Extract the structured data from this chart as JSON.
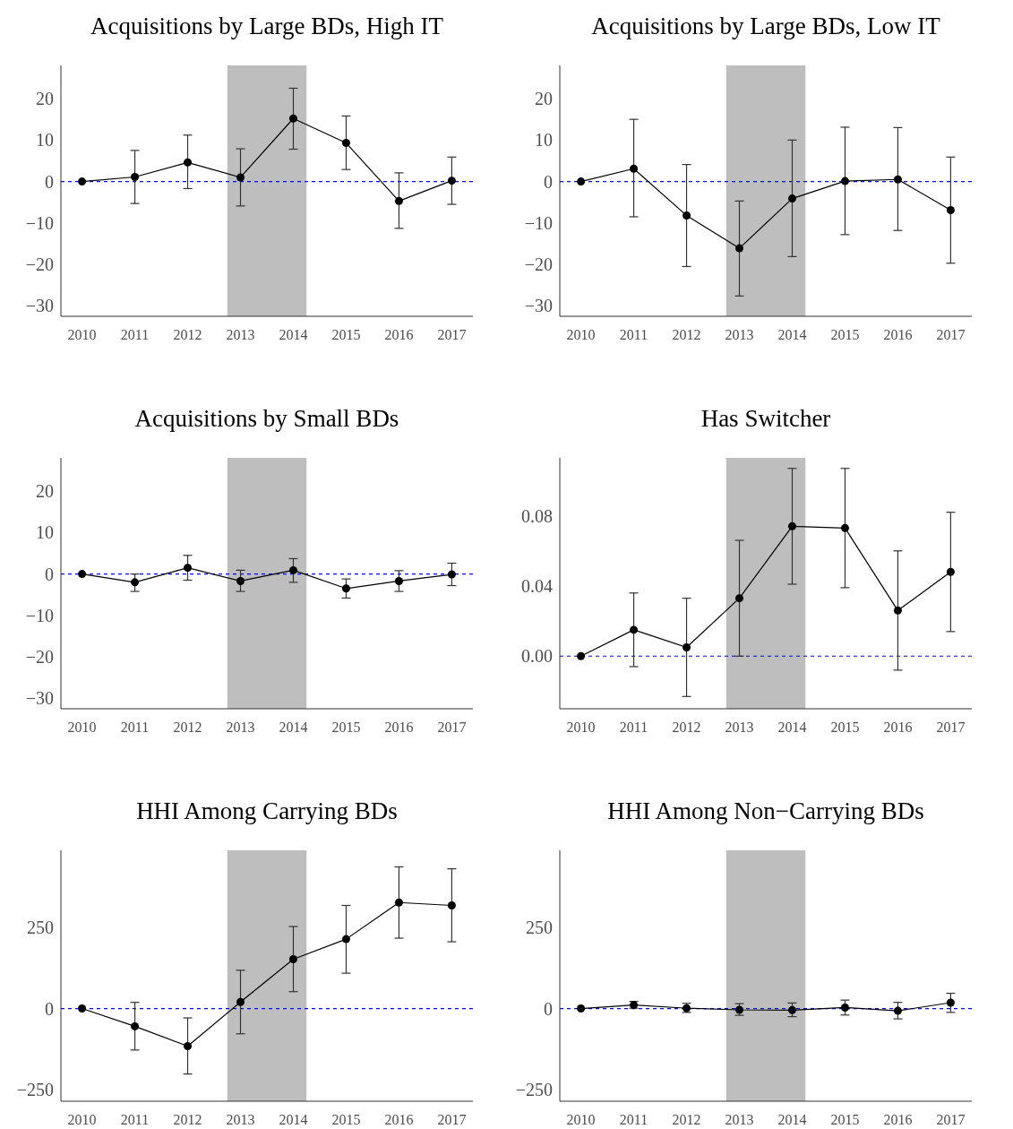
{
  "chart_data": [
    {
      "type": "line",
      "title": "Acquisitions by Large BDs, High IT",
      "x": [
        2010,
        2011,
        2012,
        2013,
        2014,
        2015,
        2016,
        2017
      ],
      "color": "#000000",
      "marker": "circle",
      "line_style": "solid",
      "values": [
        0,
        1.1,
        4.6,
        1,
        15.2,
        9.3,
        -4.7,
        0.2
      ],
      "errors": [
        null,
        [
          -5.3,
          7.5
        ],
        [
          -1.7,
          11.2
        ],
        [
          -5.9,
          7.9
        ],
        [
          7.8,
          22.5
        ],
        [
          2.9,
          15.8
        ],
        [
          -11.3,
          2.1
        ],
        [
          -5.5,
          5.9
        ]
      ],
      "xlim": [
        2009.6,
        2017.4
      ],
      "xticks": [
        2010,
        2011,
        2012,
        2013,
        2014,
        2015,
        2016,
        2017
      ],
      "ylim": [
        -32.5,
        28
      ],
      "yticks": [
        {
          "value": -30,
          "label": "−30"
        },
        {
          "value": -20,
          "label": "−20"
        },
        {
          "value": -10,
          "label": "−10"
        },
        0,
        10,
        20
      ],
      "bands": [
        {
          "axis": "x",
          "from": 2012.75,
          "to": 2014.25,
          "color": "#bebebe"
        }
      ],
      "ref_lines": [
        {
          "axis": "y",
          "value": 0,
          "color": "#0000ff",
          "line_style": "dashed"
        }
      ]
    },
    {
      "type": "line",
      "title": "Acquisitions by Large BDs, Low IT",
      "x": [
        2010,
        2011,
        2012,
        2013,
        2014,
        2015,
        2016,
        2017
      ],
      "color": "#000000",
      "marker": "circle",
      "line_style": "solid",
      "values": [
        0,
        3.1,
        -8.2,
        -16.1,
        -4.1,
        0.1,
        0.5,
        -6.9
      ],
      "errors": [
        null,
        [
          -8.5,
          15.0
        ],
        [
          -20.5,
          4.1
        ],
        [
          -27.6,
          -4.7
        ],
        [
          -18.1,
          10
        ],
        [
          -12.8,
          13.1
        ],
        [
          -11.8,
          13
        ],
        [
          -19.7,
          5.9
        ]
      ],
      "xlim": [
        2009.6,
        2017.4
      ],
      "xticks": [
        2010,
        2011,
        2012,
        2013,
        2014,
        2015,
        2016,
        2017
      ],
      "ylim": [
        -32.5,
        28
      ],
      "yticks": [
        {
          "value": -30,
          "label": "−30"
        },
        {
          "value": -20,
          "label": "−20"
        },
        {
          "value": -10,
          "label": "−10"
        },
        0,
        10,
        20
      ],
      "bands": [
        {
          "axis": "x",
          "from": 2012.75,
          "to": 2014.25,
          "color": "#bebebe"
        }
      ],
      "ref_lines": [
        {
          "axis": "y",
          "value": 0,
          "color": "#0000ff",
          "line_style": "dashed"
        }
      ]
    },
    {
      "type": "line",
      "title": "Acquisitions by Small BDs",
      "x": [
        2010,
        2011,
        2012,
        2013,
        2014,
        2015,
        2016,
        2017
      ],
      "color": "#000000",
      "marker": "circle",
      "line_style": "solid",
      "values": [
        0,
        -2.0,
        1.5,
        -1.7,
        0.9,
        -3.5,
        -1.7,
        -0.1
      ],
      "errors": [
        null,
        [
          -4.2,
          0
        ],
        [
          -1.5,
          4.5
        ],
        [
          -4.2,
          0.9
        ],
        [
          -2.0,
          3.7
        ],
        [
          -5.8,
          -1.2
        ],
        [
          -4.2,
          0.8
        ],
        [
          -2.8,
          2.6
        ]
      ],
      "xlim": [
        2009.6,
        2017.4
      ],
      "xticks": [
        2010,
        2011,
        2012,
        2013,
        2014,
        2015,
        2016,
        2017
      ],
      "ylim": [
        -32.5,
        28
      ],
      "yticks": [
        {
          "value": -30,
          "label": "−30"
        },
        {
          "value": -20,
          "label": "−20"
        },
        {
          "value": -10,
          "label": "−10"
        },
        0,
        10,
        20
      ],
      "bands": [
        {
          "axis": "x",
          "from": 2012.75,
          "to": 2014.25,
          "color": "#bebebe"
        }
      ],
      "ref_lines": [
        {
          "axis": "y",
          "value": 0,
          "color": "#0000ff",
          "line_style": "dashed"
        }
      ]
    },
    {
      "type": "line",
      "title": "Has Switcher",
      "x": [
        2010,
        2011,
        2012,
        2013,
        2014,
        2015,
        2016,
        2017
      ],
      "color": "#000000",
      "marker": "circle",
      "line_style": "solid",
      "values": [
        0,
        0.015,
        0.005,
        0.033,
        0.074,
        0.073,
        0.026,
        0.048
      ],
      "errors": [
        null,
        [
          -0.006,
          0.036
        ],
        [
          -0.023,
          0.033
        ],
        [
          0,
          0.066
        ],
        [
          0.041,
          0.107
        ],
        [
          0.039,
          0.107
        ],
        [
          -0.008,
          0.06
        ],
        [
          0.014,
          0.082
        ]
      ],
      "xlim": [
        2009.6,
        2017.4
      ],
      "xticks": [
        2010,
        2011,
        2012,
        2013,
        2014,
        2015,
        2016,
        2017
      ],
      "ylim": [
        -0.03,
        0.113
      ],
      "yticks": [
        {
          "value": 0,
          "label": "0.00"
        },
        0.04,
        0.08
      ],
      "bands": [
        {
          "axis": "x",
          "from": 2012.75,
          "to": 2014.25,
          "color": "#bebebe"
        }
      ],
      "ref_lines": [
        {
          "axis": "y",
          "value": 0,
          "color": "#0000ff",
          "line_style": "dashed"
        }
      ]
    },
    {
      "type": "line",
      "title": "HHI Among Carrying BDs",
      "x": [
        2010,
        2011,
        2012,
        2013,
        2014,
        2015,
        2016,
        2017
      ],
      "color": "#000000",
      "marker": "circle",
      "line_style": "solid",
      "values": [
        0,
        -55,
        -116,
        20,
        152,
        214,
        327,
        318
      ],
      "errors": [
        null,
        [
          -128,
          19
        ],
        [
          -202,
          -29
        ],
        [
          -78,
          118
        ],
        [
          52,
          253
        ],
        [
          109,
          318
        ],
        [
          217,
          437
        ],
        [
          206,
          431
        ]
      ],
      "xlim": [
        2009.6,
        2017.4
      ],
      "xticks": [
        2010,
        2011,
        2012,
        2013,
        2014,
        2015,
        2016,
        2017
      ],
      "ylim": [
        -286,
        488
      ],
      "yticks": [
        {
          "value": -250,
          "label": "−250"
        },
        0,
        250
      ],
      "bands": [
        {
          "axis": "x",
          "from": 2012.75,
          "to": 2014.25,
          "color": "#bebebe"
        }
      ],
      "ref_lines": [
        {
          "axis": "y",
          "value": 0,
          "color": "#0000ff",
          "line_style": "dashed"
        }
      ]
    },
    {
      "type": "line",
      "title": "HHI Among Non−Carrying BDs",
      "x": [
        2010,
        2011,
        2012,
        2013,
        2014,
        2015,
        2016,
        2017
      ],
      "color": "#000000",
      "marker": "circle",
      "line_style": "solid",
      "values": [
        0,
        11,
        1,
        -4,
        -5,
        3,
        -7,
        18
      ],
      "errors": [
        null,
        [
          1,
          22
        ],
        [
          -12,
          16
        ],
        [
          -21,
          15
        ],
        [
          -25,
          17
        ],
        [
          -20,
          26
        ],
        [
          -32,
          19
        ],
        [
          -12,
          47
        ]
      ],
      "xlim": [
        2009.6,
        2017.4
      ],
      "xticks": [
        2010,
        2011,
        2012,
        2013,
        2014,
        2015,
        2016,
        2017
      ],
      "ylim": [
        -286,
        488
      ],
      "yticks": [
        {
          "value": -250,
          "label": "−250"
        },
        0,
        250
      ],
      "bands": [
        {
          "axis": "x",
          "from": 2012.75,
          "to": 2014.25,
          "color": "#bebebe"
        }
      ],
      "ref_lines": [
        {
          "axis": "y",
          "value": 0,
          "color": "#0000ff",
          "line_style": "dashed"
        }
      ]
    }
  ]
}
